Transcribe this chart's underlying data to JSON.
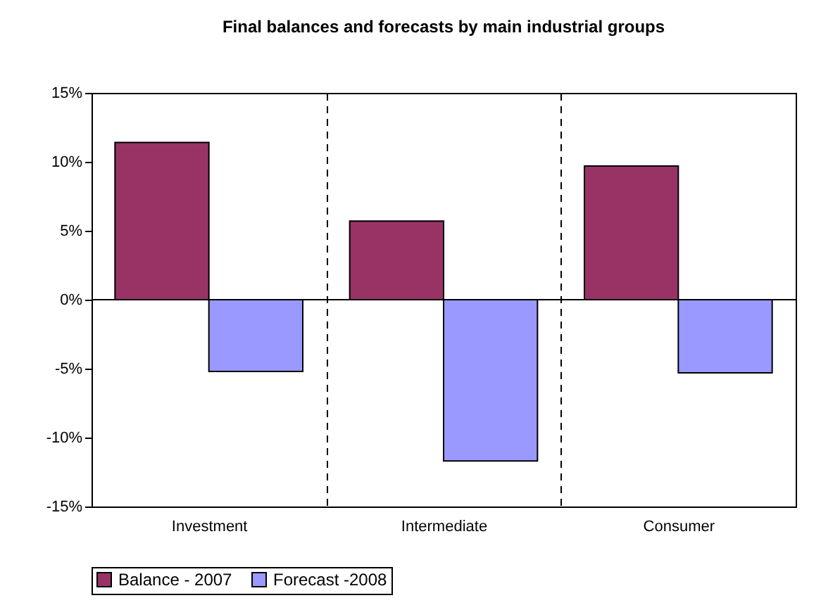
{
  "chart_data": {
    "type": "bar",
    "title": "Final balances and forecasts by main industrial groups",
    "categories": [
      "Investment",
      "Intermediate",
      "Consumer"
    ],
    "series": [
      {
        "name": "Balance - 2007",
        "color": "#993366",
        "values": [
          11.4,
          5.7,
          9.7
        ]
      },
      {
        "name": "Forecast -2008",
        "color": "#9999ff",
        "values": [
          -5.2,
          -11.7,
          -5.3
        ]
      }
    ],
    "ylim": [
      -15,
      15
    ],
    "yticks": [
      {
        "value": -15,
        "label": "-15%"
      },
      {
        "value": -10,
        "label": "-10%"
      },
      {
        "value": -5,
        "label": "-5%"
      },
      {
        "value": 0,
        "label": "0%"
      },
      {
        "value": 5,
        "label": "5%"
      },
      {
        "value": 10,
        "label": "10%"
      },
      {
        "value": 15,
        "label": "15%"
      }
    ],
    "grid": "x",
    "legend": "bottom"
  }
}
